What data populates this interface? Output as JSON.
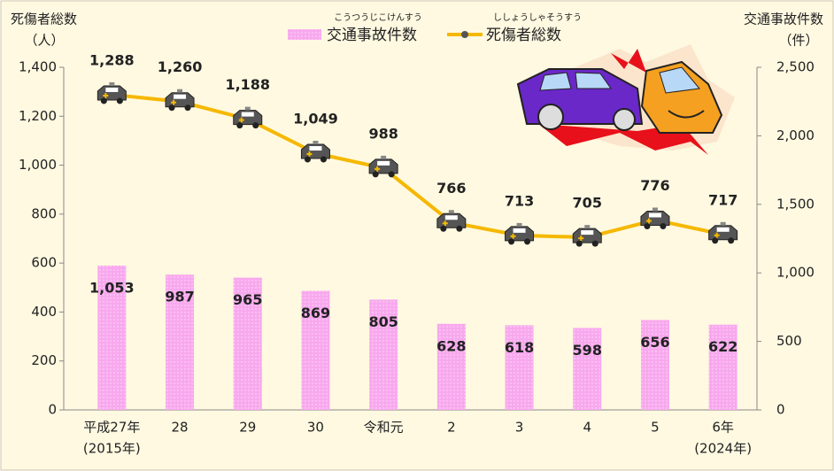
{
  "chart_data": {
    "type": "bar-line",
    "y_title": "死傷者総数",
    "y_unit": "（人）",
    "y2_title": "交通事故件数",
    "y2_unit": "（件）",
    "categories": [
      "平成27年",
      "28",
      "29",
      "30",
      "令和元",
      "2",
      "3",
      "4",
      "5",
      "6年"
    ],
    "category_notes": [
      "(2015年)",
      null,
      null,
      null,
      null,
      null,
      null,
      null,
      null,
      "(2024年)"
    ],
    "series": [
      {
        "name": "交通事故件数",
        "ruby": "こうつうじこけんすう",
        "type": "bar",
        "axis": "y2",
        "color": "#f8a8ee",
        "values": [
          1053,
          987,
          965,
          869,
          805,
          628,
          618,
          598,
          656,
          622
        ],
        "value_labels": [
          "1,053",
          "987",
          "965",
          "869",
          "805",
          "628",
          "618",
          "598",
          "656",
          "622"
        ]
      },
      {
        "name": "死傷者総数",
        "ruby": "ししょうしゃそうすう",
        "type": "line",
        "axis": "y",
        "color": "#f5b800",
        "values": [
          1288,
          1260,
          1188,
          1049,
          988,
          766,
          713,
          705,
          776,
          717
        ],
        "value_labels": [
          "1,288",
          "1,260",
          "1,188",
          "1,049",
          "988",
          "766",
          "713",
          "705",
          "776",
          "717"
        ]
      }
    ],
    "ylim": [
      0,
      1400
    ],
    "yticks": [
      0,
      200,
      400,
      600,
      800,
      {
        "value": 1000,
        "label": "1,000"
      },
      {
        "value": 1200,
        "label": "1,200"
      },
      {
        "value": 1400,
        "label": "1,400"
      }
    ],
    "y2lim": [
      0,
      2500
    ],
    "y2ticks": [
      0,
      500,
      {
        "value": 1000,
        "label": "1,000"
      },
      {
        "value": 1500,
        "label": "1,500"
      },
      {
        "value": 2000,
        "label": "2,000"
      },
      {
        "value": 2500,
        "label": "2,500"
      }
    ]
  }
}
